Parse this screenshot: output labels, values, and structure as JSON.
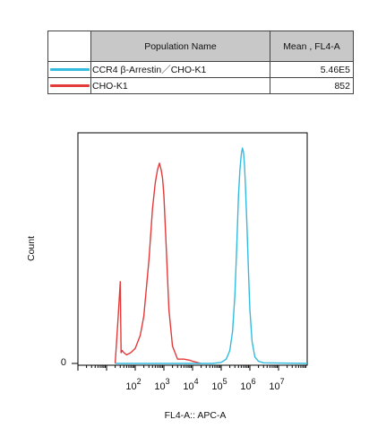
{
  "legend": {
    "header_name": "Population Name",
    "header_mean": "Mean , FL4-A",
    "rows": [
      {
        "name": "CCR4 β-Arrestin／CHO-K1",
        "mean": "5.46E5",
        "color": "#33bbe0"
      },
      {
        "name": "CHO-K1",
        "mean": "852",
        "color": "#e33a3a"
      }
    ]
  },
  "chart_data": {
    "type": "line",
    "title": "",
    "xlabel": "FL4-A:: APC-A",
    "ylabel": "Count",
    "x_scale": "log",
    "xlim": [
      1,
      100000000
    ],
    "ylim": [
      0,
      1
    ],
    "xticks": [
      {
        "base": "10",
        "exp": "2",
        "value": 100
      },
      {
        "base": "10",
        "exp": "3",
        "value": 1000
      },
      {
        "base": "10",
        "exp": "4",
        "value": 10000
      },
      {
        "base": "10",
        "exp": "5",
        "value": 100000
      },
      {
        "base": "10",
        "exp": "6",
        "value": 1000000
      },
      {
        "base": "10",
        "exp": "7",
        "value": 10000000
      }
    ],
    "yticks": [
      {
        "label": "0",
        "value": 0
      }
    ],
    "series": [
      {
        "name": "CHO-K1",
        "color": "#e33a3a",
        "x": [
          20,
          25,
          30,
          32,
          35,
          40,
          50,
          70,
          100,
          150,
          200,
          300,
          400,
          500,
          600,
          700,
          800,
          900,
          1000,
          1200,
          1500,
          2000,
          3000,
          5000,
          8000,
          10000,
          20000
        ],
        "y": [
          0.0,
          0.2,
          0.38,
          0.05,
          0.06,
          0.05,
          0.04,
          0.05,
          0.07,
          0.13,
          0.22,
          0.48,
          0.72,
          0.84,
          0.9,
          0.93,
          0.9,
          0.86,
          0.78,
          0.55,
          0.25,
          0.08,
          0.02,
          0.02,
          0.015,
          0.01,
          0.0
        ]
      },
      {
        "name": "CCR4 β-Arrestin／CHO-K1",
        "color": "#33bbe0",
        "x": [
          20,
          50000,
          100000,
          150000,
          200000,
          250000,
          300000,
          350000,
          400000,
          450000,
          500000,
          550000,
          600000,
          650000,
          700000,
          800000,
          900000,
          1000000,
          1200000,
          1500000,
          2000000,
          3000000,
          100000000
        ],
        "y": [
          0.0,
          0.0,
          0.005,
          0.02,
          0.06,
          0.15,
          0.32,
          0.55,
          0.78,
          0.9,
          0.97,
          1.0,
          0.98,
          0.92,
          0.83,
          0.62,
          0.42,
          0.25,
          0.1,
          0.03,
          0.01,
          0.003,
          0.0
        ]
      }
    ]
  }
}
